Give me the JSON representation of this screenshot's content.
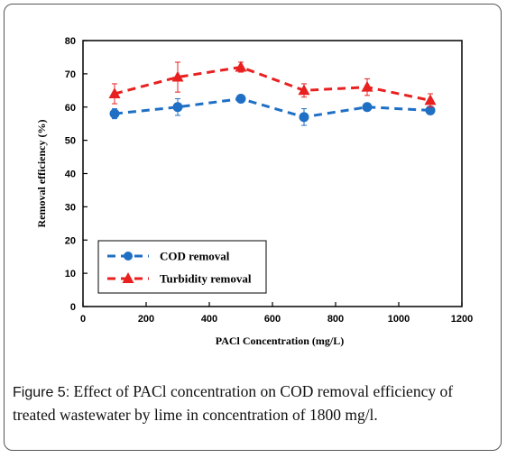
{
  "caption": {
    "label": "Figure 5:",
    "text": " Effect of PACl concentration on COD removal efficiency of treated wastewater by lime in concentration of 1800 mg/l."
  },
  "chart_data": {
    "type": "line",
    "title": "",
    "xlabel": "PACl Concentration (mg/L)",
    "ylabel": "Removal efficiency (%)",
    "xlim": [
      0,
      1200
    ],
    "ylim": [
      0,
      80
    ],
    "xticks": [
      0,
      200,
      400,
      600,
      800,
      1000,
      1200
    ],
    "yticks": [
      0,
      10,
      20,
      30,
      40,
      50,
      60,
      70,
      80
    ],
    "grid": false,
    "legend_position": "lower-left",
    "x": [
      100,
      300,
      500,
      700,
      900,
      1100
    ],
    "series": [
      {
        "name": "COD removal",
        "marker": "circle",
        "line_style": "dashed",
        "color": "#1f6fc5",
        "values": [
          58,
          60,
          62.5,
          57,
          60,
          59
        ],
        "errors": [
          1.5,
          2.5,
          1,
          2.5,
          1,
          1
        ]
      },
      {
        "name": "Turbidity removal",
        "marker": "triangle",
        "line_style": "dashed",
        "color": "#e8201f",
        "values": [
          64,
          69,
          72,
          65,
          66,
          62
        ],
        "errors": [
          3,
          4.5,
          1.5,
          2,
          2.5,
          2
        ]
      }
    ]
  }
}
